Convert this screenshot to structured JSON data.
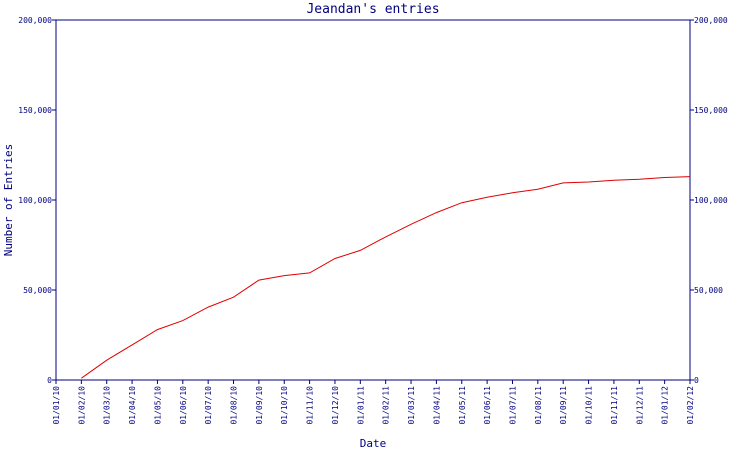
{
  "chart_data": {
    "type": "line",
    "title": "Jeandan's entries",
    "xlabel": "Date",
    "ylabel": "Number of Entries",
    "grid": false,
    "legend": "none",
    "x_tick_labels": [
      "01/01/10",
      "01/02/10",
      "01/03/10",
      "01/04/10",
      "01/05/10",
      "01/06/10",
      "01/07/10",
      "01/08/10",
      "01/09/10",
      "01/10/10",
      "01/11/10",
      "01/12/10",
      "01/01/11",
      "01/02/11",
      "01/03/11",
      "01/04/11",
      "01/05/11",
      "01/06/11",
      "01/07/11",
      "01/08/11",
      "01/09/11",
      "01/10/11",
      "01/11/11",
      "01/12/11",
      "01/01/12",
      "01/02/12"
    ],
    "y_tick_labels": [
      "0",
      "50,000",
      "100,000",
      "150,000",
      "200,000"
    ],
    "y_ticks": [
      0,
      50000,
      100000,
      150000,
      200000
    ],
    "ylim": [
      0,
      200000
    ],
    "colors": {
      "axis": "#000080",
      "series": "#e00000"
    },
    "series": [
      {
        "x": [
          "01/02/10",
          "01/03/10",
          "01/04/10",
          "01/05/10",
          "01/06/10",
          "01/07/10",
          "01/08/10",
          "01/09/10",
          "01/10/10",
          "01/11/10",
          "01/12/10",
          "01/01/11",
          "01/02/11",
          "01/03/11",
          "01/04/11",
          "01/05/11",
          "01/06/11",
          "01/07/11",
          "01/08/11",
          "01/09/11",
          "01/10/11",
          "01/11/11",
          "01/12/11",
          "01/01/12",
          "01/02/12"
        ],
        "values": [
          1000,
          11000,
          19500,
          28000,
          33000,
          40500,
          46000,
          55500,
          58000,
          59500,
          67500,
          72000,
          79500,
          86500,
          93000,
          98500,
          101500,
          104000,
          106000,
          109500,
          110000,
          111000,
          111500,
          112500,
          113000
        ]
      }
    ]
  }
}
